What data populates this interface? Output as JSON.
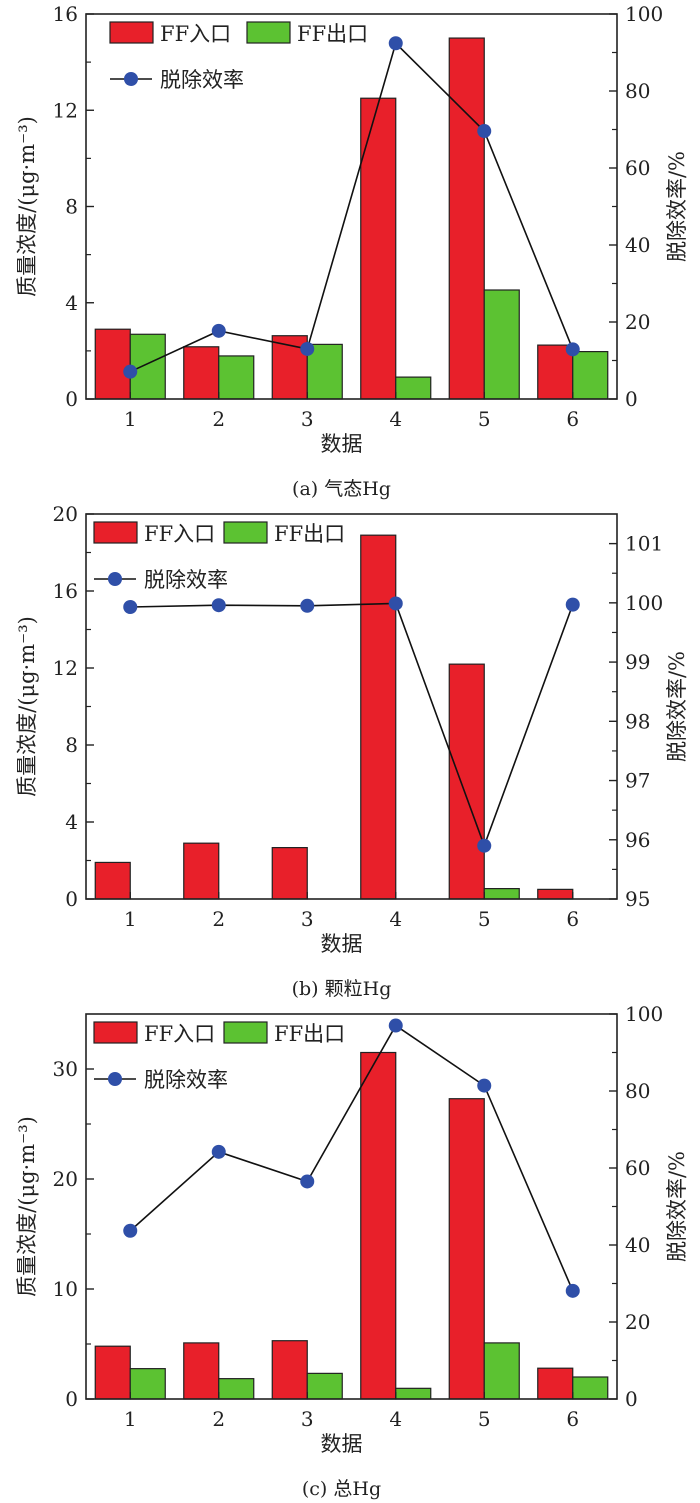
{
  "colors": {
    "inlet": "#e8202a",
    "outlet": "#5cc232",
    "efficiency": "#2f4fa8",
    "line": "#111111"
  },
  "chart_data": [
    {
      "type": "bar",
      "caption": "(a) 气态Hg",
      "categories": [
        "1",
        "2",
        "3",
        "4",
        "5",
        "6"
      ],
      "xlabel": "数据",
      "ylabel": "质量浓度/(μg·m⁻³)",
      "ylabel_right": "脱除效率/%",
      "ylim": [
        0,
        16
      ],
      "yticks": [
        "0",
        "4",
        "8",
        "12",
        "16"
      ],
      "ylim_right": [
        0,
        100
      ],
      "yticks_right": [
        "0",
        "20",
        "40",
        "60",
        "80",
        "100"
      ],
      "legend": {
        "inlet": "FF入口",
        "outlet": "FF出口",
        "efficiency": "脱除效率"
      },
      "series": [
        {
          "name": "FF入口",
          "values": [
            2.9,
            2.17,
            2.63,
            12.5,
            15.0,
            2.24
          ]
        },
        {
          "name": "FF出口",
          "values": [
            2.69,
            1.79,
            2.27,
            0.91,
            4.53,
            1.97
          ]
        },
        {
          "name": "脱除效率",
          "axis": "right",
          "type": "line",
          "values": [
            7.1,
            17.7,
            13.0,
            92.4,
            69.6,
            12.9
          ]
        }
      ]
    },
    {
      "type": "bar",
      "caption": "(b) 颗粒Hg",
      "categories": [
        "1",
        "2",
        "3",
        "4",
        "5",
        "6"
      ],
      "xlabel": "数据",
      "ylabel": "质量浓度/(μg·m⁻³)",
      "ylabel_right": "脱除效率/%",
      "ylim": [
        0,
        20
      ],
      "yticks": [
        "0",
        "4",
        "8",
        "12",
        "16",
        "20"
      ],
      "ylim_right": [
        95,
        101.5
      ],
      "yticks_right": [
        "95",
        "96",
        "97",
        "98",
        "99",
        "100",
        "101"
      ],
      "legend": {
        "inlet": "FF入口",
        "outlet": "FF出口",
        "efficiency": "脱除效率"
      },
      "series": [
        {
          "name": "FF入口",
          "values": [
            1.9,
            2.9,
            2.67,
            18.9,
            12.2,
            0.5
          ]
        },
        {
          "name": "FF出口",
          "values": [
            0.0,
            0.0,
            0.0,
            0.0,
            0.54,
            0.0
          ]
        },
        {
          "name": "脱除效率",
          "axis": "right",
          "type": "line",
          "values": [
            99.93,
            99.96,
            99.95,
            99.99,
            95.9,
            99.97
          ]
        }
      ]
    },
    {
      "type": "bar",
      "caption": "(c) 总Hg",
      "categories": [
        "1",
        "2",
        "3",
        "4",
        "5",
        "6"
      ],
      "xlabel": "数据",
      "ylabel": "质量浓度/(μg·m⁻³)",
      "ylabel_right": "脱除效率/%",
      "ylim": [
        0,
        35
      ],
      "yticks": [
        "0",
        "10",
        "20",
        "30"
      ],
      "ylim_right": [
        0,
        100
      ],
      "yticks_right": [
        "0",
        "20",
        "40",
        "60",
        "80",
        "100"
      ],
      "legend": {
        "inlet": "FF入口",
        "outlet": "FF出口",
        "efficiency": "脱除效率"
      },
      "series": [
        {
          "name": "FF入口",
          "values": [
            4.8,
            5.1,
            5.3,
            31.5,
            27.3,
            2.8
          ]
        },
        {
          "name": "FF出口",
          "values": [
            2.76,
            1.85,
            2.33,
            0.97,
            5.1,
            2.0
          ]
        },
        {
          "name": "脱除效率",
          "axis": "right",
          "type": "line",
          "values": [
            43.7,
            64.2,
            56.5,
            97.0,
            81.4,
            28.1
          ]
        }
      ]
    }
  ]
}
